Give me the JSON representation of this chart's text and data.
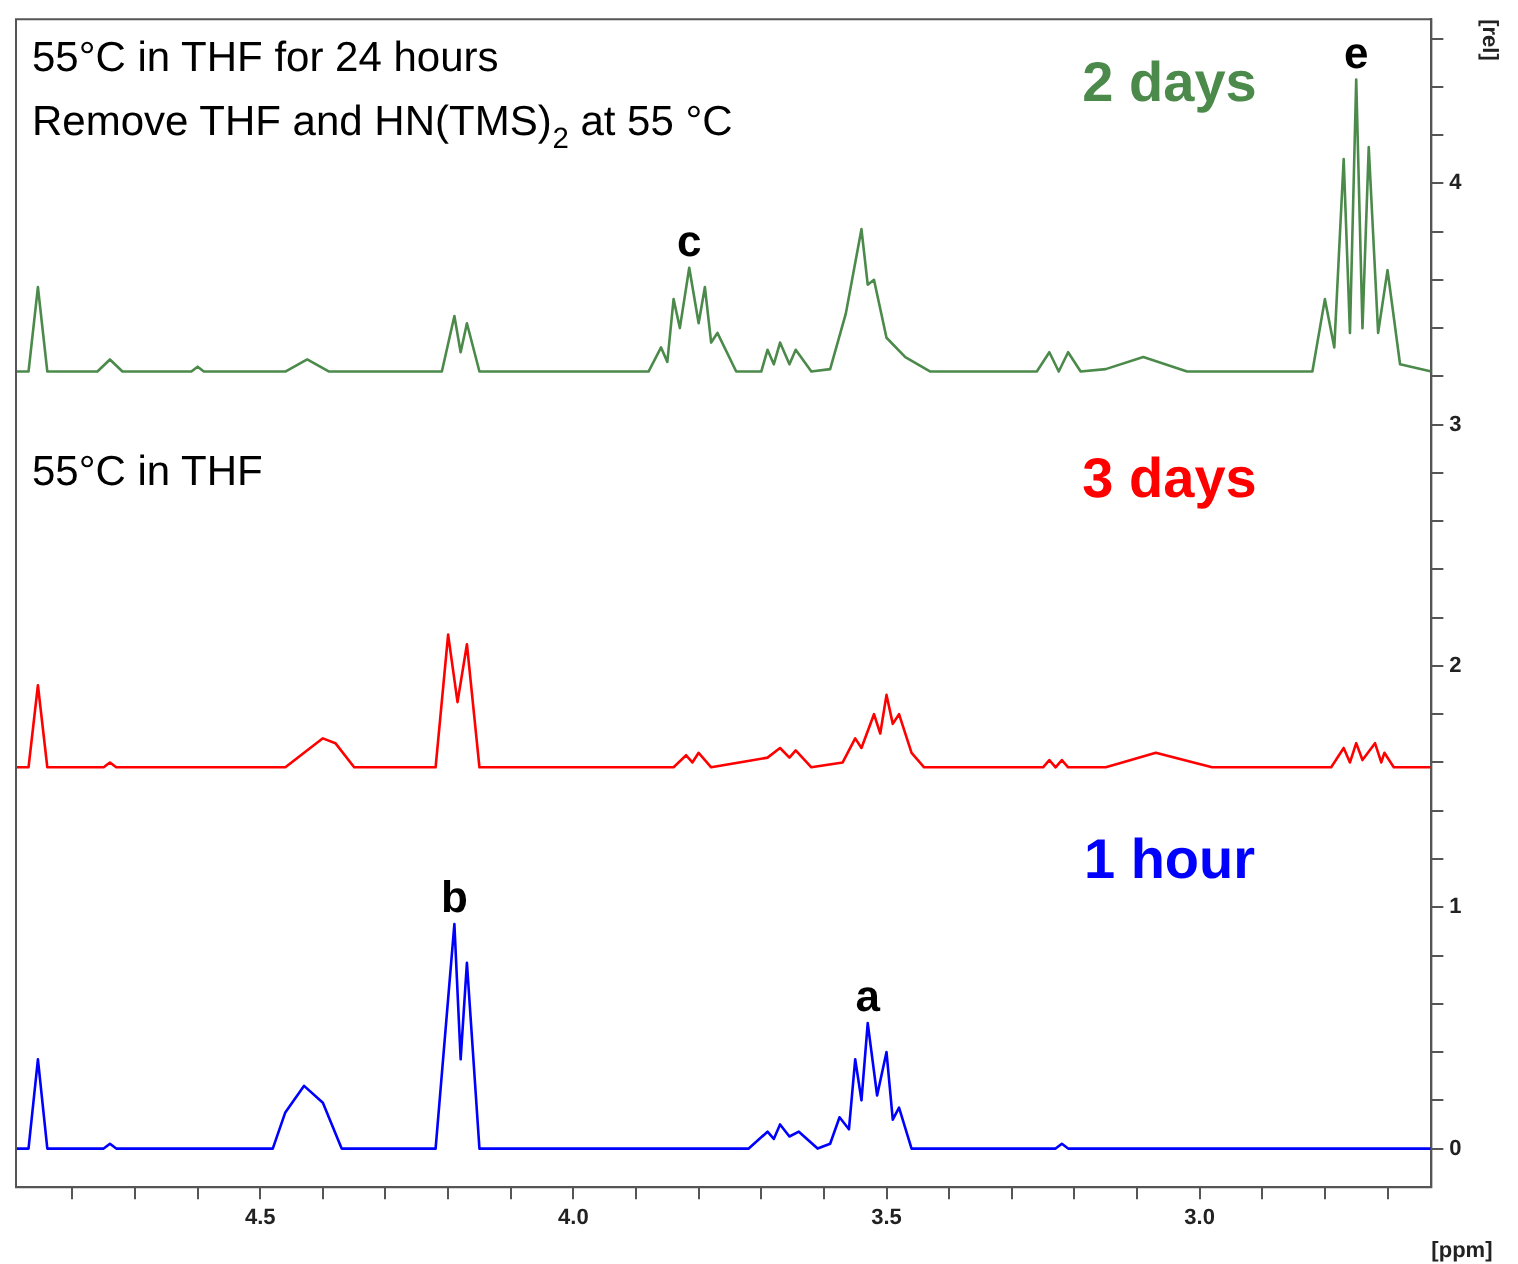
{
  "chart_data": {
    "type": "line",
    "xlabel": "[ppm]",
    "ylabel": "[rel]",
    "xlim": [
      4.89,
      2.63
    ],
    "ylim": [
      -0.16,
      4.68
    ],
    "xticks": [
      {
        "value": 4.8,
        "label": null
      },
      {
        "value": 4.7,
        "label": null
      },
      {
        "value": 4.6,
        "label": null
      },
      4.5,
      {
        "value": 4.4,
        "label": null
      },
      {
        "value": 4.3,
        "label": null
      },
      {
        "value": 4.2,
        "label": null
      },
      {
        "value": 4.1,
        "label": null
      },
      {
        "value": 4,
        "label": "4.0"
      },
      {
        "value": 3.9,
        "label": null
      },
      {
        "value": 3.8,
        "label": null
      },
      {
        "value": 3.7,
        "label": null
      },
      {
        "value": 3.6,
        "label": null
      },
      3.5,
      {
        "value": 3.4,
        "label": null
      },
      {
        "value": 3.3,
        "label": null
      },
      {
        "value": 3.2,
        "label": null
      },
      {
        "value": 3.1,
        "label": null
      },
      {
        "value": 3,
        "label": "3.0"
      },
      {
        "value": 2.9,
        "label": null
      },
      {
        "value": 2.8,
        "label": null
      },
      {
        "value": 2.7,
        "label": null
      }
    ],
    "yticks": [
      0,
      {
        "value": 0.2,
        "label": null
      },
      {
        "value": 0.4,
        "label": null
      },
      {
        "value": 0.6,
        "label": null
      },
      {
        "value": 0.8,
        "label": null
      },
      1,
      {
        "value": 1.2,
        "label": null
      },
      {
        "value": 1.4,
        "label": null
      },
      {
        "value": 1.6,
        "label": null
      },
      {
        "value": 1.8,
        "label": null
      },
      2,
      {
        "value": 2.2,
        "label": null
      },
      {
        "value": 2.4,
        "label": null
      },
      {
        "value": 2.6,
        "label": null
      },
      {
        "value": 2.8,
        "label": null
      },
      3,
      {
        "value": 3.2,
        "label": null
      },
      {
        "value": 3.4,
        "label": null
      },
      {
        "value": 3.6,
        "label": null
      },
      {
        "value": 3.8,
        "label": null
      },
      4,
      {
        "value": 4.2,
        "label": null
      },
      {
        "value": 4.4,
        "label": null
      },
      {
        "value": 4.6,
        "label": null
      }
    ],
    "grid": false,
    "legend": false,
    "marker": "none",
    "line_style": "solid",
    "series": [
      {
        "name": "1 hour",
        "color": "#0000ff",
        "x": [
          4.89,
          4.87,
          4.855,
          4.84,
          4.75,
          4.74,
          4.73,
          4.48,
          4.46,
          4.43,
          4.4,
          4.37,
          4.22,
          4.19,
          4.18,
          4.17,
          4.15,
          3.72,
          3.69,
          3.68,
          3.67,
          3.655,
          3.64,
          3.61,
          3.59,
          3.575,
          3.56,
          3.55,
          3.54,
          3.53,
          3.515,
          3.5,
          3.49,
          3.48,
          3.46,
          3.23,
          3.22,
          3.21,
          2.63
        ],
        "values": [
          0,
          0,
          0.37,
          0,
          0,
          0.02,
          0,
          0,
          0.15,
          0.26,
          0.19,
          0,
          0,
          0.93,
          0.37,
          0.77,
          0,
          0,
          0.07,
          0.04,
          0.1,
          0.05,
          0.07,
          0,
          0.02,
          0.13,
          0.08,
          0.37,
          0.2,
          0.52,
          0.22,
          0.4,
          0.12,
          0.17,
          0,
          0,
          0.02,
          0,
          0
        ]
      },
      {
        "name": "3 days",
        "color": "#ff0000",
        "x": [
          4.89,
          4.87,
          4.855,
          4.84,
          4.75,
          4.74,
          4.73,
          4.46,
          4.43,
          4.4,
          4.38,
          4.35,
          4.22,
          4.2,
          4.185,
          4.17,
          4.15,
          3.84,
          3.82,
          3.81,
          3.8,
          3.78,
          3.69,
          3.67,
          3.655,
          3.645,
          3.62,
          3.57,
          3.55,
          3.54,
          3.52,
          3.51,
          3.5,
          3.49,
          3.48,
          3.46,
          3.44,
          3.25,
          3.24,
          3.23,
          3.22,
          3.21,
          3.15,
          3.07,
          2.98,
          2.79,
          2.77,
          2.76,
          2.75,
          2.74,
          2.72,
          2.71,
          2.705,
          2.69,
          2.63
        ],
        "values": [
          1.58,
          1.58,
          1.92,
          1.58,
          1.58,
          1.6,
          1.58,
          1.58,
          1.64,
          1.7,
          1.68,
          1.58,
          1.58,
          2.13,
          1.85,
          2.09,
          1.58,
          1.58,
          1.63,
          1.6,
          1.64,
          1.58,
          1.62,
          1.66,
          1.62,
          1.65,
          1.58,
          1.6,
          1.7,
          1.66,
          1.8,
          1.72,
          1.88,
          1.76,
          1.8,
          1.64,
          1.58,
          1.58,
          1.61,
          1.58,
          1.61,
          1.58,
          1.58,
          1.64,
          1.58,
          1.58,
          1.66,
          1.6,
          1.68,
          1.61,
          1.68,
          1.6,
          1.64,
          1.58,
          1.58
        ]
      },
      {
        "name": "2 days",
        "color": "#4b8a4b",
        "x": [
          4.89,
          4.87,
          4.855,
          4.84,
          4.76,
          4.74,
          4.72,
          4.61,
          4.6,
          4.59,
          4.46,
          4.425,
          4.39,
          4.21,
          4.19,
          4.18,
          4.17,
          4.15,
          3.88,
          3.86,
          3.85,
          3.84,
          3.83,
          3.815,
          3.8,
          3.79,
          3.78,
          3.77,
          3.74,
          3.7,
          3.69,
          3.68,
          3.67,
          3.655,
          3.645,
          3.62,
          3.59,
          3.565,
          3.54,
          3.53,
          3.52,
          3.5,
          3.47,
          3.43,
          3.26,
          3.24,
          3.225,
          3.21,
          3.19,
          3.15,
          3.09,
          3.02,
          2.82,
          2.8,
          2.785,
          2.77,
          2.76,
          2.75,
          2.74,
          2.73,
          2.715,
          2.7,
          2.68,
          2.63
        ],
        "values": [
          3.22,
          3.22,
          3.57,
          3.22,
          3.22,
          3.27,
          3.22,
          3.22,
          3.24,
          3.22,
          3.22,
          3.27,
          3.22,
          3.22,
          3.45,
          3.3,
          3.42,
          3.22,
          3.22,
          3.32,
          3.26,
          3.52,
          3.4,
          3.65,
          3.42,
          3.57,
          3.34,
          3.38,
          3.22,
          3.22,
          3.31,
          3.25,
          3.34,
          3.25,
          3.31,
          3.22,
          3.23,
          3.46,
          3.81,
          3.58,
          3.6,
          3.36,
          3.28,
          3.22,
          3.22,
          3.3,
          3.22,
          3.3,
          3.22,
          3.23,
          3.28,
          3.22,
          3.22,
          3.52,
          3.32,
          4.1,
          3.38,
          4.43,
          3.4,
          4.15,
          3.38,
          3.64,
          3.25,
          3.22
        ]
      }
    ],
    "annotations": [
      "55°C in THF for 24 hours",
      "Remove THF and HN(TMS)$_{2}$ at 55 °C",
      "55°C in THF",
      {
        "text": "a",
        "x": 3.53,
        "y": 0.52
      },
      {
        "text": "b",
        "x": 4.19,
        "y": 0.93
      },
      {
        "text": "c",
        "x": 3.815,
        "y": 3.65
      },
      {
        "text": "e",
        "x": 2.75,
        "y": 4.43
      }
    ]
  }
}
